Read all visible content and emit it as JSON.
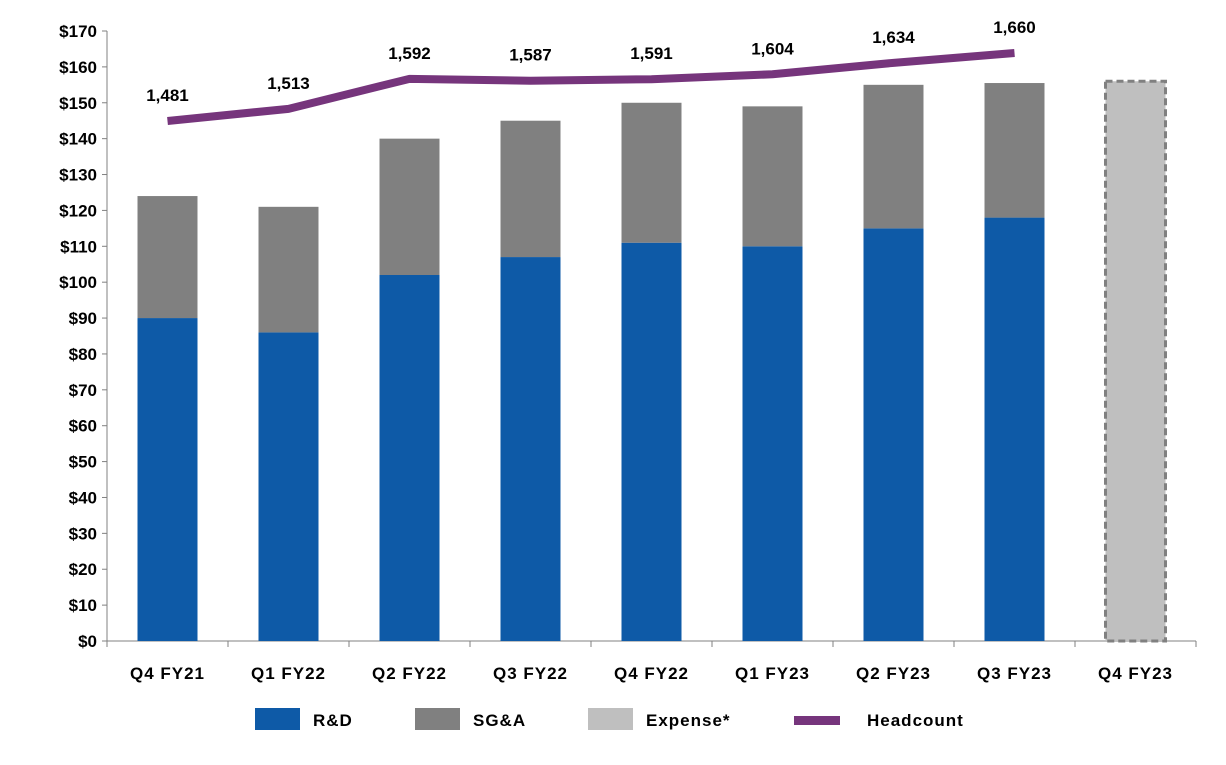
{
  "chart_data": {
    "type": "bar",
    "stacked": true,
    "categories": [
      "Q4 FY21",
      "Q1 FY22",
      "Q2 FY22",
      "Q3 FY22",
      "Q4 FY22",
      "Q1 FY23",
      "Q2 FY23",
      "Q3 FY23",
      "Q4 FY23"
    ],
    "series": [
      {
        "name": "R&D",
        "color": "#0E5AA7",
        "values": [
          90,
          86,
          102,
          107,
          111,
          110,
          115,
          118,
          null
        ]
      },
      {
        "name": "SG&A",
        "color": "#808080",
        "values": [
          34,
          35,
          38,
          38,
          39,
          39,
          40,
          37.5,
          null
        ]
      },
      {
        "name": "Expense*",
        "color": "#BFBFBF",
        "dashed_outline": true,
        "values": [
          null,
          null,
          null,
          null,
          null,
          null,
          null,
          null,
          156
        ]
      }
    ],
    "line_series": {
      "name": "Headcount",
      "color": "#76357C",
      "secondary_axis_hidden": true,
      "values": [
        1481,
        1513,
        1592,
        1587,
        1591,
        1604,
        1634,
        1660
      ],
      "labels": [
        "1,481",
        "1,513",
        "1,592",
        "1,587",
        "1,591",
        "1,604",
        "1,634",
        "1,660"
      ]
    },
    "y_ticks": [
      "$0",
      "$10",
      "$20",
      "$30",
      "$40",
      "$50",
      "$60",
      "$70",
      "$80",
      "$90",
      "$100",
      "$110",
      "$120",
      "$130",
      "$140",
      "$150",
      "$160",
      "$170"
    ],
    "ylim": [
      0,
      170
    ],
    "grid": false,
    "legend_placement": "bottom",
    "legend": [
      "R&D",
      "SG&A",
      "Expense*",
      "Headcount"
    ]
  }
}
